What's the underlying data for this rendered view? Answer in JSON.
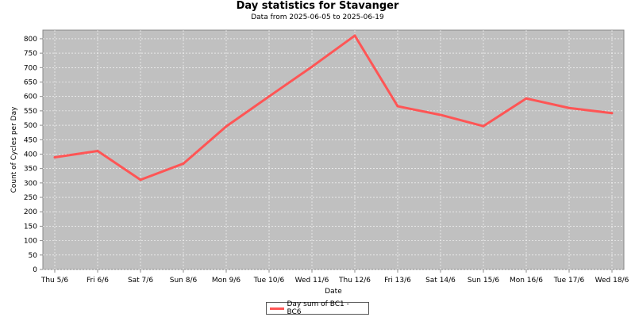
{
  "colors": {
    "plot_bg": "#c0c0c0",
    "grid": "#ffffff",
    "series": "#ff5555",
    "axis": "#888888",
    "text": "#000000"
  },
  "chart_data": {
    "type": "line",
    "title": "Day statistics for Stavanger",
    "subtitle": "Data from 2025-06-05  to  2025-06-19",
    "xlabel": "Date",
    "ylabel": "Count of Cycles per Day",
    "categories": [
      "Thu 5/6",
      "Fri 6/6",
      "Sat 7/6",
      "Sun 8/6",
      "Mon 9/6",
      "Tue 10/6",
      "Wed 11/6",
      "Thu 12/6",
      "Fri 13/6",
      "Sat 14/6",
      "Sun 15/6",
      "Mon 16/6",
      "Tue 17/6",
      "Wed 18/6"
    ],
    "series": [
      {
        "name": "Day sum of BC1 - BC6",
        "values": [
          389,
          411,
          311,
          367,
          496,
          600,
          703,
          811,
          566,
          536,
          497,
          593,
          560,
          542
        ]
      }
    ],
    "ylim": [
      0,
      830
    ],
    "yticks": [
      0,
      50,
      100,
      150,
      200,
      250,
      300,
      350,
      400,
      450,
      500,
      550,
      600,
      650,
      700,
      750,
      800
    ],
    "grid": true,
    "legend_position": "bottom-center"
  }
}
